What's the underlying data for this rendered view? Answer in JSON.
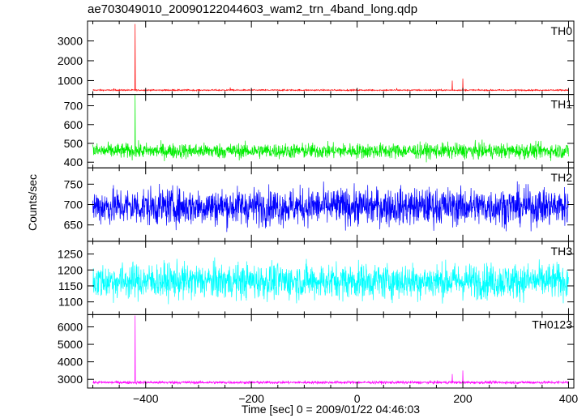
{
  "title": "ae703049010_20090122044603_wam2_trn_4band_long.qdp",
  "chart_data": {
    "type": "line",
    "title": "ae703049010_20090122044603_wam2_trn_4band_long.qdp",
    "xlabel": "Time [sec] 0 = 2009/01/22 04:46:03",
    "ylabel": "Counts/sec",
    "xlim": [
      -510,
      410
    ],
    "xticks": [
      -400,
      -200,
      0,
      200,
      400
    ],
    "grid": false,
    "series": [
      {
        "name": "TH0",
        "color": "#ff0000",
        "ylim": [
          300,
          4000
        ],
        "yticks": [
          1000,
          2000,
          3000
        ],
        "baseline": 520,
        "noise": 30,
        "spikes": [
          {
            "x": -420,
            "y": 3850
          },
          {
            "x": -240,
            "y": 650
          },
          {
            "x": -460,
            "y": 610
          },
          {
            "x": 75,
            "y": 620
          },
          {
            "x": 180,
            "y": 1000
          },
          {
            "x": 200,
            "y": 1100
          }
        ]
      },
      {
        "name": "TH1",
        "color": "#00ee00",
        "ylim": [
          370,
          760
        ],
        "yticks": [
          400,
          500,
          600,
          700
        ],
        "baseline": 460,
        "noise": 40,
        "spikes": [
          {
            "x": -420,
            "y": 760
          }
        ]
      },
      {
        "name": "TH2",
        "color": "#0000ff",
        "ylim": [
          610,
          790
        ],
        "yticks": [
          650,
          700,
          750
        ],
        "baseline": 695,
        "noise": 45,
        "spikes": []
      },
      {
        "name": "TH3",
        "color": "#00ffff",
        "ylim": [
          1060,
          1290
        ],
        "yticks": [
          1100,
          1150,
          1200,
          1250
        ],
        "baseline": 1165,
        "noise": 55,
        "spikes": []
      },
      {
        "name": "TH0123",
        "color": "#ff00ff",
        "ylim": [
          2500,
          6700
        ],
        "yticks": [
          3000,
          4000,
          5000,
          6000
        ],
        "baseline": 2820,
        "noise": 80,
        "spikes": [
          {
            "x": -420,
            "y": 6650
          },
          {
            "x": 180,
            "y": 3300
          },
          {
            "x": 200,
            "y": 3500
          }
        ]
      }
    ]
  }
}
